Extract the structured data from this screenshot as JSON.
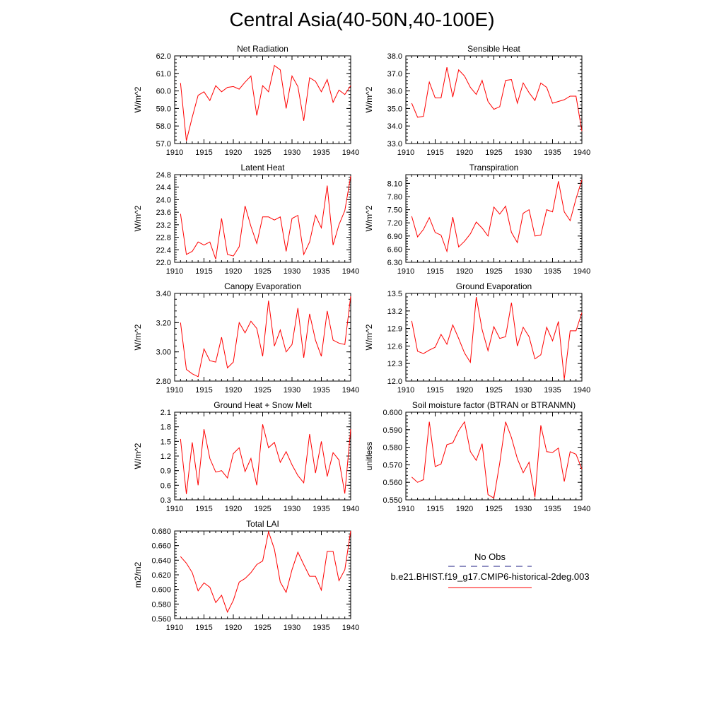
{
  "title": "Central Asia(40-50N,40-100E)",
  "legend": {
    "obs_label": "No Obs",
    "obs_color": "#4a4a9c",
    "model_label": "b.e21.BHIST.f19_g17.CMIP6-historical-2deg.003",
    "model_color": "#ff0000"
  },
  "chart_data": [
    {
      "type": "line",
      "title": "Net Radiation",
      "ylabel": "W/m^2",
      "xlim": [
        1910,
        1940
      ],
      "ylim": [
        57.0,
        62.0
      ],
      "xticks": [
        "1910",
        "1915",
        "1920",
        "1925",
        "1930",
        "1935",
        "1940"
      ],
      "yticks": [
        "57.0",
        "58.0",
        "59.0",
        "60.0",
        "61.0",
        "62.0"
      ],
      "ytick_values": [
        57,
        58,
        59,
        60,
        61,
        62
      ],
      "x": [
        1911,
        1912,
        1913,
        1914,
        1915,
        1916,
        1917,
        1918,
        1919,
        1920,
        1921,
        1922,
        1923,
        1924,
        1925,
        1926,
        1927,
        1928,
        1929,
        1930,
        1931,
        1932,
        1933,
        1934,
        1935,
        1936,
        1937,
        1938,
        1939,
        1940
      ],
      "series": [
        {
          "values": [
            60.45,
            57.15,
            58.5,
            59.75,
            59.95,
            59.45,
            60.3,
            59.95,
            60.2,
            60.25,
            60.1,
            60.5,
            60.85,
            58.6,
            60.3,
            59.95,
            61.45,
            61.2,
            59.0,
            60.85,
            60.25,
            58.3,
            60.75,
            60.55,
            59.95,
            60.65,
            59.35,
            60.05,
            59.8,
            60.3
          ]
        }
      ]
    },
    {
      "type": "line",
      "title": "Sensible Heat",
      "ylabel": "W/m^2",
      "xlim": [
        1910,
        1940
      ],
      "ylim": [
        33.0,
        38.0
      ],
      "xticks": [
        "1910",
        "1915",
        "1920",
        "1925",
        "1930",
        "1935",
        "1940"
      ],
      "yticks": [
        "33.0",
        "34.0",
        "35.0",
        "36.0",
        "37.0",
        "38.0"
      ],
      "ytick_values": [
        33,
        34,
        35,
        36,
        37,
        38
      ],
      "x": [
        1911,
        1912,
        1913,
        1914,
        1915,
        1916,
        1917,
        1918,
        1919,
        1920,
        1921,
        1922,
        1923,
        1924,
        1925,
        1926,
        1927,
        1928,
        1929,
        1930,
        1931,
        1932,
        1933,
        1934,
        1935,
        1936,
        1937,
        1938,
        1939,
        1940
      ],
      "series": [
        {
          "values": [
            35.3,
            34.5,
            34.55,
            36.5,
            35.6,
            35.6,
            37.35,
            35.65,
            37.2,
            36.85,
            36.2,
            35.8,
            36.6,
            35.4,
            34.95,
            35.1,
            36.6,
            36.65,
            35.3,
            36.45,
            35.9,
            35.45,
            36.45,
            36.2,
            35.3,
            35.4,
            35.5,
            35.7,
            35.7,
            33.7
          ]
        }
      ]
    },
    {
      "type": "line",
      "title": "Latent Heat",
      "ylabel": "W/m^2",
      "xlim": [
        1910,
        1940
      ],
      "ylim": [
        22.0,
        24.8
      ],
      "xticks": [
        "1910",
        "1915",
        "1920",
        "1925",
        "1930",
        "1935",
        "1940"
      ],
      "yticks": [
        "22.0",
        "22.4",
        "22.8",
        "23.2",
        "23.6",
        "24.0",
        "24.4",
        "24.8"
      ],
      "ytick_values": [
        22.0,
        22.4,
        22.8,
        23.2,
        23.6,
        24.0,
        24.4,
        24.8
      ],
      "x": [
        1911,
        1912,
        1913,
        1914,
        1915,
        1916,
        1917,
        1918,
        1919,
        1920,
        1921,
        1922,
        1923,
        1924,
        1925,
        1926,
        1927,
        1928,
        1929,
        1930,
        1931,
        1932,
        1933,
        1934,
        1935,
        1936,
        1937,
        1938,
        1939,
        1940
      ],
      "series": [
        {
          "values": [
            23.55,
            22.25,
            22.35,
            22.65,
            22.55,
            22.65,
            22.1,
            23.4,
            22.25,
            22.2,
            22.5,
            23.8,
            23.15,
            22.6,
            23.45,
            23.45,
            23.35,
            23.45,
            22.35,
            23.4,
            23.5,
            22.25,
            22.65,
            23.5,
            23.1,
            24.45,
            22.55,
            23.2,
            23.65,
            24.75
          ]
        }
      ]
    },
    {
      "type": "line",
      "title": "Transpiration",
      "ylabel": "W/m^2",
      "xlim": [
        1910,
        1940
      ],
      "ylim": [
        6.3,
        8.3
      ],
      "xticks": [
        "1910",
        "1915",
        "1920",
        "1925",
        "1930",
        "1935",
        "1940"
      ],
      "yticks": [
        "6.30",
        "6.60",
        "6.90",
        "7.20",
        "7.50",
        "7.80",
        "8.10"
      ],
      "ytick_values": [
        6.3,
        6.6,
        6.9,
        7.2,
        7.5,
        7.8,
        8.1
      ],
      "x": [
        1911,
        1912,
        1913,
        1914,
        1915,
        1916,
        1917,
        1918,
        1919,
        1920,
        1921,
        1922,
        1923,
        1924,
        1925,
        1926,
        1927,
        1928,
        1929,
        1930,
        1931,
        1932,
        1933,
        1934,
        1935,
        1936,
        1937,
        1938,
        1939,
        1940
      ],
      "series": [
        {
          "values": [
            7.35,
            6.88,
            7.05,
            7.32,
            6.98,
            6.92,
            6.55,
            7.33,
            6.65,
            6.78,
            6.95,
            7.22,
            7.08,
            6.9,
            7.56,
            7.4,
            7.58,
            6.98,
            6.75,
            7.42,
            7.5,
            6.9,
            6.92,
            7.5,
            7.45,
            8.15,
            7.45,
            7.25,
            7.75,
            8.18
          ]
        }
      ]
    },
    {
      "type": "line",
      "title": "Canopy Evaporation",
      "ylabel": "W/m^2",
      "xlim": [
        1910,
        1940
      ],
      "ylim": [
        2.8,
        3.4
      ],
      "xticks": [
        "1910",
        "1915",
        "1920",
        "1925",
        "1930",
        "1935",
        "1940"
      ],
      "yticks": [
        "2.80",
        "3.00",
        "3.20",
        "3.40"
      ],
      "ytick_values": [
        2.8,
        3.0,
        3.2,
        3.4
      ],
      "x": [
        1911,
        1912,
        1913,
        1914,
        1915,
        1916,
        1917,
        1918,
        1919,
        1920,
        1921,
        1922,
        1923,
        1924,
        1925,
        1926,
        1927,
        1928,
        1929,
        1930,
        1931,
        1932,
        1933,
        1934,
        1935,
        1936,
        1937,
        1938,
        1939,
        1940
      ],
      "series": [
        {
          "values": [
            3.2,
            2.88,
            2.85,
            2.83,
            3.02,
            2.94,
            2.93,
            3.1,
            2.89,
            2.93,
            3.2,
            3.13,
            3.21,
            3.16,
            2.97,
            3.35,
            3.04,
            3.15,
            3.0,
            3.05,
            3.3,
            2.96,
            3.26,
            3.08,
            2.97,
            3.28,
            3.08,
            3.06,
            3.05,
            3.38
          ]
        }
      ]
    },
    {
      "type": "line",
      "title": "Ground Evaporation",
      "ylabel": "W/m^2",
      "xlim": [
        1910,
        1940
      ],
      "ylim": [
        12.0,
        13.5
      ],
      "xticks": [
        "1910",
        "1915",
        "1920",
        "1925",
        "1930",
        "1935",
        "1940"
      ],
      "yticks": [
        "12.0",
        "12.3",
        "12.6",
        "12.9",
        "13.2",
        "13.5"
      ],
      "ytick_values": [
        12.0,
        12.3,
        12.6,
        12.9,
        13.2,
        13.5
      ],
      "x": [
        1911,
        1912,
        1913,
        1914,
        1915,
        1916,
        1917,
        1918,
        1919,
        1920,
        1921,
        1922,
        1923,
        1924,
        1925,
        1926,
        1927,
        1928,
        1929,
        1930,
        1931,
        1932,
        1933,
        1934,
        1935,
        1936,
        1937,
        1938,
        1939,
        1940
      ],
      "series": [
        {
          "values": [
            13.03,
            12.51,
            12.47,
            12.53,
            12.58,
            12.8,
            12.63,
            12.96,
            12.73,
            12.48,
            12.32,
            13.44,
            12.88,
            12.52,
            12.93,
            12.73,
            12.76,
            13.34,
            12.6,
            12.92,
            12.76,
            12.38,
            12.45,
            12.92,
            12.69,
            13.02,
            12.03,
            12.86,
            12.86,
            13.17
          ]
        }
      ]
    },
    {
      "type": "line",
      "title": "Ground Heat + Snow Melt",
      "ylabel": "W/m^2",
      "xlim": [
        1910,
        1940
      ],
      "ylim": [
        0.3,
        2.1
      ],
      "xticks": [
        "1910",
        "1915",
        "1920",
        "1925",
        "1930",
        "1935",
        "1940"
      ],
      "yticks": [
        "0.3",
        "0.6",
        "0.9",
        "1.2",
        "1.5",
        "1.8",
        "2.1"
      ],
      "ytick_values": [
        0.3,
        0.6,
        0.9,
        1.2,
        1.5,
        1.8,
        2.1
      ],
      "x": [
        1911,
        1912,
        1913,
        1914,
        1915,
        1916,
        1917,
        1918,
        1919,
        1920,
        1921,
        1922,
        1923,
        1924,
        1925,
        1926,
        1927,
        1928,
        1929,
        1930,
        1931,
        1932,
        1933,
        1934,
        1935,
        1936,
        1937,
        1938,
        1939,
        1940
      ],
      "series": [
        {
          "values": [
            1.55,
            0.42,
            1.48,
            0.6,
            1.75,
            1.15,
            0.87,
            0.9,
            0.75,
            1.25,
            1.37,
            0.88,
            1.15,
            0.6,
            1.85,
            1.37,
            1.48,
            1.07,
            1.29,
            1.02,
            0.8,
            0.65,
            1.65,
            0.85,
            1.5,
            0.78,
            1.27,
            1.12,
            0.43,
            1.75
          ]
        }
      ]
    },
    {
      "type": "line",
      "title": "Soil moisture factor (BTRAN or BTRANMN)",
      "ylabel": "unitless",
      "xlim": [
        1910,
        1940
      ],
      "ylim": [
        0.55,
        0.6
      ],
      "xticks": [
        "1910",
        "1915",
        "1920",
        "1925",
        "1930",
        "1935",
        "1940"
      ],
      "yticks": [
        "0.550",
        "0.560",
        "0.570",
        "0.580",
        "0.590",
        "0.600"
      ],
      "ytick_values": [
        0.55,
        0.56,
        0.57,
        0.58,
        0.59,
        0.6
      ],
      "x": [
        1911,
        1912,
        1913,
        1914,
        1915,
        1916,
        1917,
        1918,
        1919,
        1920,
        1921,
        1922,
        1923,
        1924,
        1925,
        1926,
        1927,
        1928,
        1929,
        1930,
        1931,
        1932,
        1933,
        1934,
        1935,
        1936,
        1937,
        1938,
        1939,
        1940
      ],
      "series": [
        {
          "values": [
            0.563,
            0.56,
            0.5615,
            0.5945,
            0.569,
            0.5705,
            0.5815,
            0.5825,
            0.5895,
            0.5945,
            0.5775,
            0.5725,
            0.582,
            0.553,
            0.551,
            0.571,
            0.5945,
            0.5855,
            0.5735,
            0.5655,
            0.5715,
            0.5515,
            0.5925,
            0.5775,
            0.577,
            0.5795,
            0.5605,
            0.5775,
            0.576,
            0.5675
          ]
        }
      ]
    },
    {
      "type": "line",
      "title": "Total LAI",
      "ylabel": "m2/m2",
      "xlim": [
        1910,
        1940
      ],
      "ylim": [
        0.56,
        0.68
      ],
      "xticks": [
        "1910",
        "1915",
        "1920",
        "1925",
        "1930",
        "1935",
        "1940"
      ],
      "yticks": [
        "0.560",
        "0.580",
        "0.600",
        "0.620",
        "0.640",
        "0.660",
        "0.680"
      ],
      "ytick_values": [
        0.56,
        0.58,
        0.6,
        0.62,
        0.64,
        0.66,
        0.68
      ],
      "x": [
        1911,
        1912,
        1913,
        1914,
        1915,
        1916,
        1917,
        1918,
        1919,
        1920,
        1921,
        1922,
        1923,
        1924,
        1925,
        1926,
        1927,
        1928,
        1929,
        1930,
        1931,
        1932,
        1933,
        1934,
        1935,
        1936,
        1937,
        1938,
        1939,
        1940
      ],
      "series": [
        {
          "values": [
            0.645,
            0.636,
            0.623,
            0.598,
            0.609,
            0.603,
            0.582,
            0.592,
            0.569,
            0.585,
            0.61,
            0.615,
            0.623,
            0.634,
            0.639,
            0.679,
            0.655,
            0.61,
            0.596,
            0.627,
            0.651,
            0.634,
            0.618,
            0.618,
            0.599,
            0.652,
            0.652,
            0.612,
            0.627,
            0.68
          ]
        }
      ]
    }
  ]
}
